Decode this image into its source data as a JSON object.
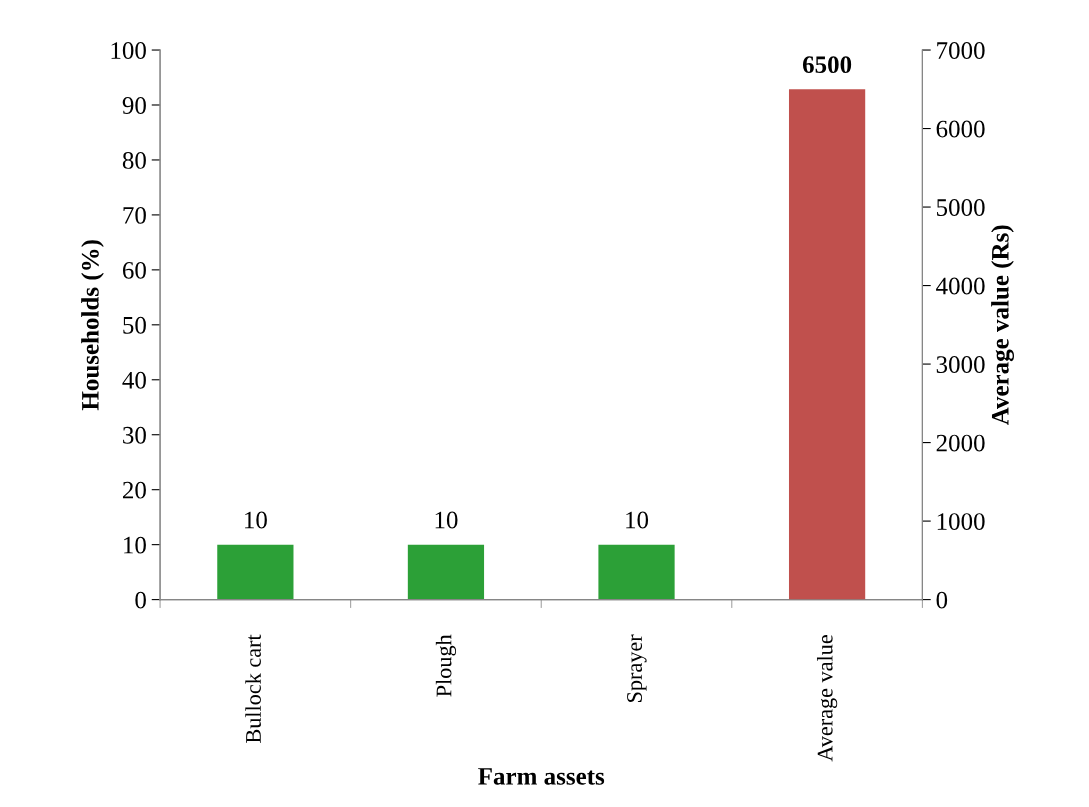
{
  "chart_data": {
    "type": "bar",
    "xlabel": "Farm assets",
    "ylabel": "Households (%)",
    "y2label": "Average value (Rs)",
    "categories": [
      "Bullock cart",
      "Plough",
      "Sprayer",
      "Average value"
    ],
    "series": [
      {
        "color": "#2ca037",
        "values": [
          10,
          10,
          10,
          null
        ]
      },
      {
        "color": "#c0504d",
        "axis": "y2",
        "values": [
          null,
          null,
          null,
          6500
        ]
      }
    ],
    "ylim": [
      0,
      100
    ],
    "yticks": [
      0,
      10,
      20,
      30,
      40,
      50,
      60,
      70,
      80,
      90,
      100
    ],
    "y2lim": [
      0,
      7000
    ],
    "y2ticks": [
      0,
      1000,
      2000,
      3000,
      4000,
      5000,
      6000,
      7000
    ],
    "data_labels": true,
    "grid": false,
    "legend": false
  }
}
